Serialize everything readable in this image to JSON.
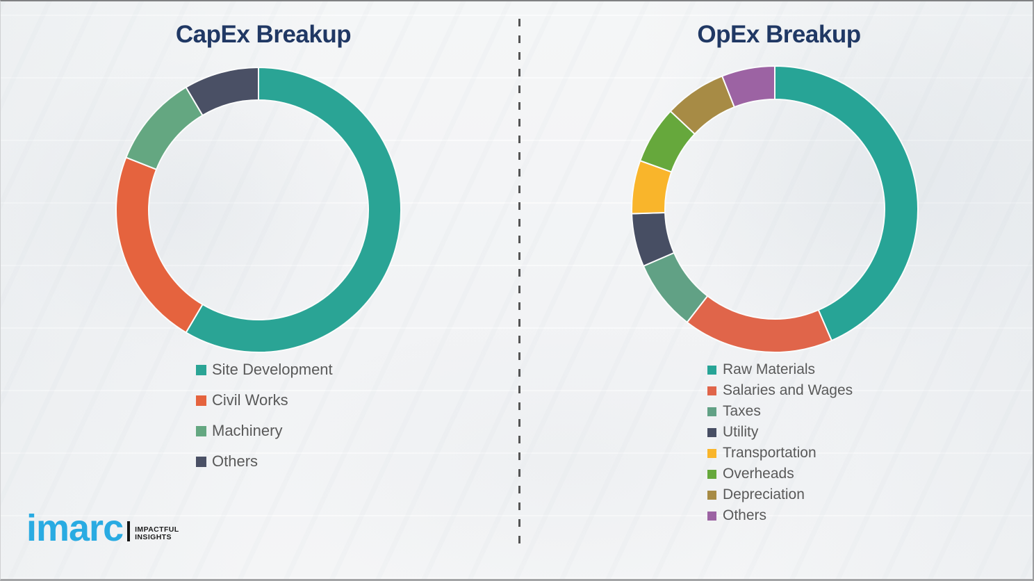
{
  "theme": {
    "title_color": "#203864",
    "legend_text_color": "#595959",
    "divider_color": "#545454",
    "background_color": "#f4f5f6",
    "segment_gap_color": "#fbfcfc"
  },
  "chart_data": [
    {
      "type": "pie",
      "subtype": "donut",
      "title": "CapEx Breakup",
      "categories": [
        "Site Development",
        "Civil Works",
        "Machinery",
        "Others"
      ],
      "values": [
        58.5,
        22.5,
        10.5,
        8.5
      ],
      "colors": [
        "#2aa495",
        "#e5633e",
        "#64a781",
        "#4a5065"
      ],
      "start_angle_deg": 0,
      "direction": "clockwise",
      "outer_radius": 205,
      "inner_radius": 158,
      "legend_position": "below-left",
      "value_note": "percent estimated from arc angles; no data labels shown"
    },
    {
      "type": "pie",
      "subtype": "donut",
      "title": "OpEx Breakup",
      "categories": [
        "Raw Materials",
        "Salaries and Wages",
        "Taxes",
        "Utility",
        "Transportation",
        "Overheads",
        "Depreciation",
        "Others"
      ],
      "values": [
        43.5,
        17,
        8,
        6,
        6,
        6.5,
        7,
        6
      ],
      "colors": [
        "#27a496",
        "#e0654a",
        "#61a185",
        "#474e63",
        "#f9b52b",
        "#66a83c",
        "#a78b45",
        "#9c63a3"
      ],
      "start_angle_deg": 0,
      "direction": "clockwise",
      "outer_radius": 206,
      "inner_radius": 158,
      "legend_position": "below-left",
      "value_note": "percent estimated from arc angles; no data labels shown"
    }
  ],
  "logo": {
    "brand": "imarc",
    "tagline_line1": "IMPACTFUL",
    "tagline_line2": "INSIGHTS",
    "brand_color": "#29abe2"
  }
}
